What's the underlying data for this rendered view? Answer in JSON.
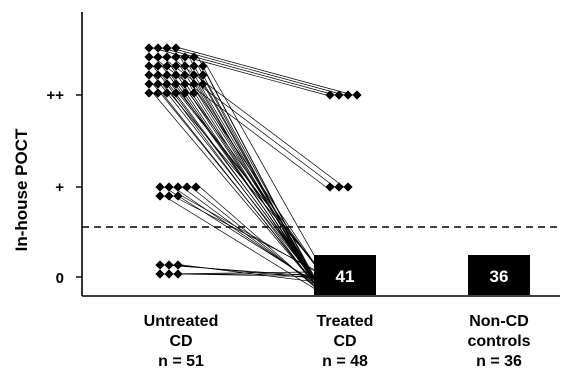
{
  "chart_data": {
    "type": "scatter",
    "ylabel": "In-house POCT",
    "y_tick_labels": [
      "0",
      "+",
      "++"
    ],
    "y_levels": [
      0,
      1,
      2
    ],
    "categories": [
      {
        "name": "Untreated CD",
        "line1": "Untreated",
        "line2": "CD",
        "n_label": "n = 51"
      },
      {
        "name": "Treated CD",
        "line1": "Treated",
        "line2": "CD",
        "n_label": "n = 48"
      },
      {
        "name": "Non-CD controls",
        "line1": "Non-CD",
        "line2": "controls",
        "n_label": "n = 36"
      }
    ],
    "points": {
      "Untreated CD": {
        "level_2": 37,
        "level_1": 8,
        "level_0": 6
      },
      "Treated CD": {
        "level_2": 4,
        "level_1": 3,
        "level_0": 41
      }
    },
    "count_boxes": [
      {
        "category": "Treated CD",
        "level": 0,
        "value": "41"
      },
      {
        "category": "Non-CD controls",
        "level": 0,
        "value": "36"
      }
    ],
    "transitions": [
      {
        "from": 2,
        "to": 2,
        "count": 4
      },
      {
        "from": 2,
        "to": 1,
        "count": 3
      },
      {
        "from": 2,
        "to": 0,
        "count": 30
      },
      {
        "from": 1,
        "to": 0,
        "count": 8
      },
      {
        "from": 0,
        "to": 0,
        "count": 6
      }
    ],
    "threshold_line": {
      "style": "dashed",
      "level": 0.55
    },
    "grid": false,
    "legend": "none",
    "marker": "diamond",
    "colors": {
      "marker": "#000000",
      "line": "#000000",
      "box": "#000000",
      "box_text": "#ffffff"
    }
  }
}
